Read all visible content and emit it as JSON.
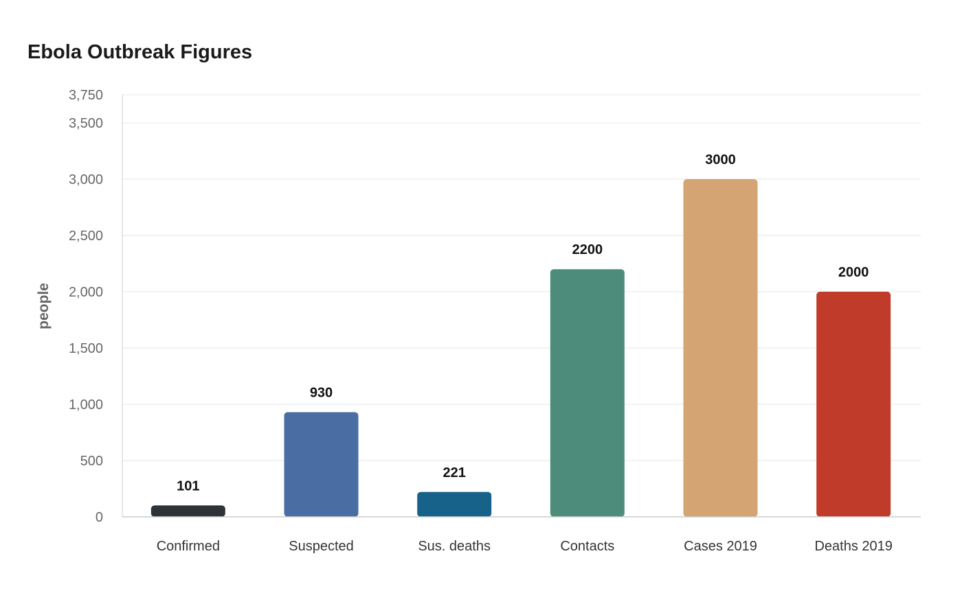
{
  "chart_data": {
    "type": "bar",
    "title": "Ebola Outbreak Figures",
    "xlabel": "",
    "ylabel": "people",
    "ylim": [
      0,
      3750
    ],
    "yticks": [
      "0",
      "500",
      "1,000",
      "1,500",
      "2,000",
      "2,500",
      "3,000",
      "3,500",
      "3,750"
    ],
    "ytick_values": [
      0,
      500,
      1000,
      1500,
      2000,
      2500,
      3000,
      3500,
      3750
    ],
    "grid": true,
    "legend": "none",
    "categories": [
      "Confirmed",
      "Suspected",
      "Sus. deaths",
      "Contacts",
      "Cases 2019",
      "Deaths 2019"
    ],
    "values": [
      101,
      930,
      221,
      2200,
      3000,
      2000
    ],
    "data_labels": [
      "101",
      "930",
      "221",
      "2200",
      "3000",
      "2000"
    ],
    "colors": [
      "#2e3338",
      "#4a6da3",
      "#17628a",
      "#4d8c7b",
      "#d4a473",
      "#c13b2b"
    ]
  }
}
